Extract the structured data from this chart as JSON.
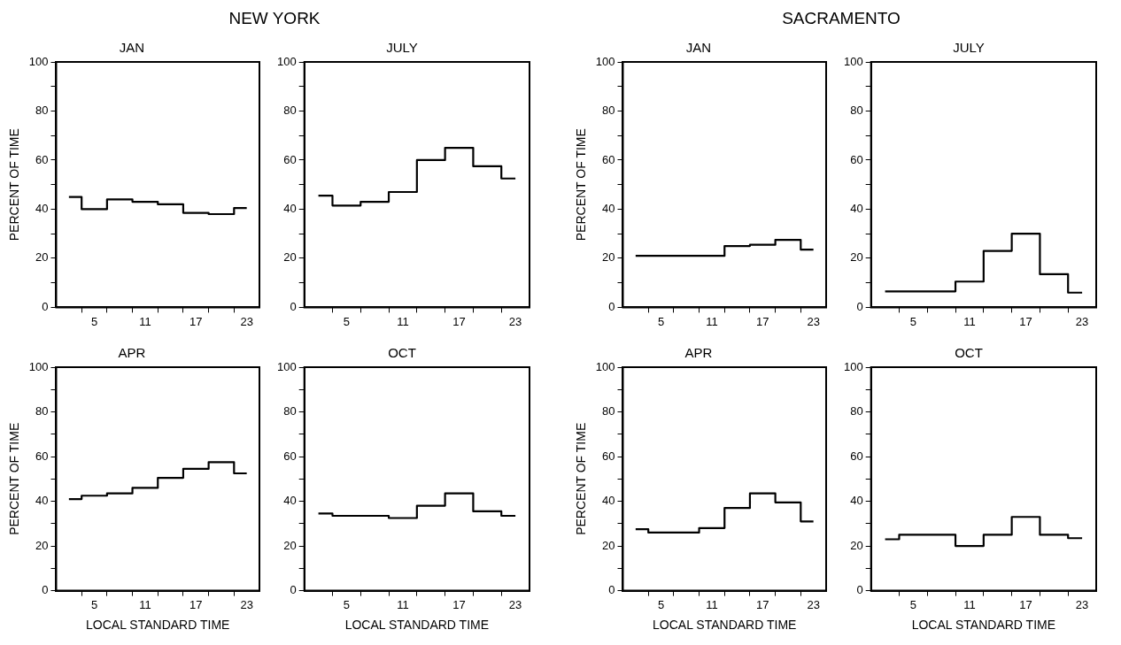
{
  "chart_data": [
    {
      "type": "other",
      "title": "NEW YORK"
    },
    {
      "type": "step",
      "title": "JAN",
      "ylabel": "PERCENT OF TIME",
      "color": "#000000",
      "x": [
        2,
        5,
        8,
        11,
        14,
        17,
        20,
        23
      ],
      "values": [
        45,
        40,
        44,
        43,
        42,
        38.5,
        38,
        40.5
      ],
      "xlim": [
        0.5,
        24.5
      ],
      "xticks": [
        {
          "value": 3.5,
          "label": null
        },
        5,
        {
          "value": 6.5,
          "label": null
        },
        {
          "value": 9.5,
          "label": null
        },
        11,
        {
          "value": 12.5,
          "label": null
        },
        {
          "value": 15.5,
          "label": null
        },
        17,
        {
          "value": 18.5,
          "label": null
        },
        {
          "value": 21.5,
          "label": null
        },
        23
      ],
      "ylim": [
        0,
        100
      ],
      "yticks": [
        0,
        {
          "value": 10,
          "label": null
        },
        20,
        {
          "value": 30,
          "label": null
        },
        40,
        {
          "value": 50,
          "label": null
        },
        60,
        {
          "value": 70,
          "label": null
        },
        80,
        {
          "value": 90,
          "label": null
        },
        100
      ]
    },
    {
      "type": "step",
      "title": "JULY",
      "color": "#000000",
      "x": [
        2,
        5,
        8,
        11,
        14,
        17,
        20,
        23
      ],
      "values": [
        45.5,
        41.5,
        43,
        47,
        60,
        65,
        57.5,
        52.5
      ],
      "xlim": [
        0.5,
        24.5
      ],
      "xticks": [
        {
          "value": 3.5,
          "label": null
        },
        5,
        {
          "value": 6.5,
          "label": null
        },
        {
          "value": 9.5,
          "label": null
        },
        11,
        {
          "value": 12.5,
          "label": null
        },
        {
          "value": 15.5,
          "label": null
        },
        17,
        {
          "value": 18.5,
          "label": null
        },
        {
          "value": 21.5,
          "label": null
        },
        23
      ],
      "ylim": [
        0,
        100
      ],
      "yticks": [
        0,
        {
          "value": 10,
          "label": null
        },
        20,
        {
          "value": 30,
          "label": null
        },
        40,
        {
          "value": 50,
          "label": null
        },
        60,
        {
          "value": 70,
          "label": null
        },
        80,
        {
          "value": 90,
          "label": null
        },
        100
      ]
    },
    {
      "type": "step",
      "title": "APR",
      "xlabel": "LOCAL STANDARD TIME",
      "ylabel": "PERCENT OF TIME",
      "color": "#000000",
      "x": [
        2,
        5,
        8,
        11,
        14,
        17,
        20,
        23
      ],
      "values": [
        41,
        42.5,
        43.5,
        46,
        50.5,
        54.5,
        57.5,
        52.5
      ],
      "xlim": [
        0.5,
        24.5
      ],
      "xticks": [
        {
          "value": 3.5,
          "label": null
        },
        5,
        {
          "value": 6.5,
          "label": null
        },
        {
          "value": 9.5,
          "label": null
        },
        11,
        {
          "value": 12.5,
          "label": null
        },
        {
          "value": 15.5,
          "label": null
        },
        17,
        {
          "value": 18.5,
          "label": null
        },
        {
          "value": 21.5,
          "label": null
        },
        23
      ],
      "ylim": [
        0,
        100
      ],
      "yticks": [
        0,
        {
          "value": 10,
          "label": null
        },
        20,
        {
          "value": 30,
          "label": null
        },
        40,
        {
          "value": 50,
          "label": null
        },
        60,
        {
          "value": 70,
          "label": null
        },
        80,
        {
          "value": 90,
          "label": null
        },
        100
      ]
    },
    {
      "type": "step",
      "title": "OCT",
      "xlabel": "LOCAL STANDARD TIME",
      "color": "#000000",
      "x": [
        2,
        5,
        8,
        11,
        14,
        17,
        20,
        23
      ],
      "values": [
        34.5,
        33.5,
        33.5,
        32.5,
        38,
        43.5,
        35.5,
        33.5
      ],
      "xlim": [
        0.5,
        24.5
      ],
      "xticks": [
        {
          "value": 3.5,
          "label": null
        },
        5,
        {
          "value": 6.5,
          "label": null
        },
        {
          "value": 9.5,
          "label": null
        },
        11,
        {
          "value": 12.5,
          "label": null
        },
        {
          "value": 15.5,
          "label": null
        },
        17,
        {
          "value": 18.5,
          "label": null
        },
        {
          "value": 21.5,
          "label": null
        },
        23
      ],
      "ylim": [
        0,
        100
      ],
      "yticks": [
        0,
        {
          "value": 10,
          "label": null
        },
        20,
        {
          "value": 30,
          "label": null
        },
        40,
        {
          "value": 50,
          "label": null
        },
        60,
        {
          "value": 70,
          "label": null
        },
        80,
        {
          "value": 90,
          "label": null
        },
        100
      ]
    },
    {
      "type": "other",
      "title": "SACRAMENTO"
    },
    {
      "type": "step",
      "title": "JAN",
      "ylabel": "PERCENT OF TIME",
      "color": "#000000",
      "x": [
        2,
        5,
        8,
        11,
        14,
        17,
        20,
        23
      ],
      "values": [
        21,
        21,
        21,
        21,
        25,
        25.5,
        27.5,
        23.5
      ],
      "xlim": [
        0.5,
        24.5
      ],
      "xticks": [
        {
          "value": 3.5,
          "label": null
        },
        5,
        {
          "value": 6.5,
          "label": null
        },
        {
          "value": 9.5,
          "label": null
        },
        11,
        {
          "value": 12.5,
          "label": null
        },
        {
          "value": 15.5,
          "label": null
        },
        17,
        {
          "value": 18.5,
          "label": null
        },
        {
          "value": 21.5,
          "label": null
        },
        23
      ],
      "ylim": [
        0,
        100
      ],
      "yticks": [
        0,
        {
          "value": 10,
          "label": null
        },
        20,
        {
          "value": 30,
          "label": null
        },
        40,
        {
          "value": 50,
          "label": null
        },
        60,
        {
          "value": 70,
          "label": null
        },
        80,
        {
          "value": 90,
          "label": null
        },
        100
      ]
    },
    {
      "type": "step",
      "title": "JULY",
      "color": "#000000",
      "x": [
        2,
        5,
        8,
        11,
        14,
        17,
        20,
        23
      ],
      "values": [
        6.5,
        6.5,
        6.5,
        10.5,
        23,
        30,
        13.5,
        6
      ],
      "xlim": [
        0.5,
        24.5
      ],
      "xticks": [
        {
          "value": 3.5,
          "label": null
        },
        5,
        {
          "value": 6.5,
          "label": null
        },
        {
          "value": 9.5,
          "label": null
        },
        11,
        {
          "value": 12.5,
          "label": null
        },
        {
          "value": 15.5,
          "label": null
        },
        17,
        {
          "value": 18.5,
          "label": null
        },
        {
          "value": 21.5,
          "label": null
        },
        23
      ],
      "ylim": [
        0,
        100
      ],
      "yticks": [
        0,
        {
          "value": 10,
          "label": null
        },
        20,
        {
          "value": 30,
          "label": null
        },
        40,
        {
          "value": 50,
          "label": null
        },
        60,
        {
          "value": 70,
          "label": null
        },
        80,
        {
          "value": 90,
          "label": null
        },
        100
      ]
    },
    {
      "type": "step",
      "title": "APR",
      "xlabel": "LOCAL STANDARD TIME",
      "ylabel": "PERCENT OF TIME",
      "color": "#000000",
      "x": [
        2,
        5,
        8,
        11,
        14,
        17,
        20,
        23
      ],
      "values": [
        27.5,
        26,
        26,
        28,
        37,
        43.5,
        39.5,
        31
      ],
      "xlim": [
        0.5,
        24.5
      ],
      "xticks": [
        {
          "value": 3.5,
          "label": null
        },
        5,
        {
          "value": 6.5,
          "label": null
        },
        {
          "value": 9.5,
          "label": null
        },
        11,
        {
          "value": 12.5,
          "label": null
        },
        {
          "value": 15.5,
          "label": null
        },
        17,
        {
          "value": 18.5,
          "label": null
        },
        {
          "value": 21.5,
          "label": null
        },
        23
      ],
      "ylim": [
        0,
        100
      ],
      "yticks": [
        0,
        {
          "value": 10,
          "label": null
        },
        20,
        {
          "value": 30,
          "label": null
        },
        40,
        {
          "value": 50,
          "label": null
        },
        60,
        {
          "value": 70,
          "label": null
        },
        80,
        {
          "value": 90,
          "label": null
        },
        100
      ]
    },
    {
      "type": "step",
      "title": "OCT",
      "xlabel": "LOCAL STANDARD TIME",
      "color": "#000000",
      "x": [
        2,
        5,
        8,
        11,
        14,
        17,
        20,
        23
      ],
      "values": [
        23,
        25,
        25,
        20,
        25,
        33,
        25,
        23.5
      ],
      "xlim": [
        0.5,
        24.5
      ],
      "xticks": [
        {
          "value": 3.5,
          "label": null
        },
        5,
        {
          "value": 6.5,
          "label": null
        },
        {
          "value": 9.5,
          "label": null
        },
        11,
        {
          "value": 12.5,
          "label": null
        },
        {
          "value": 15.5,
          "label": null
        },
        17,
        {
          "value": 18.5,
          "label": null
        },
        {
          "value": 21.5,
          "label": null
        },
        23
      ],
      "ylim": [
        0,
        100
      ],
      "yticks": [
        0,
        {
          "value": 10,
          "label": null
        },
        20,
        {
          "value": 30,
          "label": null
        },
        40,
        {
          "value": 50,
          "label": null
        },
        60,
        {
          "value": 70,
          "label": null
        },
        80,
        {
          "value": 90,
          "label": null
        },
        100
      ]
    }
  ]
}
